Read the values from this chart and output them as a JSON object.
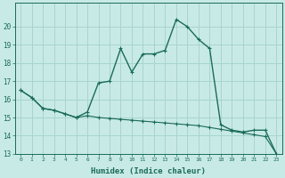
{
  "xlabel": "Humidex (Indice chaleur)",
  "bg_color": "#c8eae6",
  "grid_color": "#a8d4d0",
  "line_color": "#1a6b5a",
  "x_line1": [
    0,
    1,
    2,
    3,
    4,
    5,
    6,
    7,
    8,
    9,
    10,
    11,
    12,
    13,
    14,
    15,
    16,
    17,
    18,
    19,
    20,
    21,
    22,
    23
  ],
  "y_line1": [
    16.5,
    16.1,
    15.5,
    15.4,
    15.2,
    15.0,
    15.3,
    16.9,
    17.0,
    18.8,
    17.5,
    18.5,
    18.5,
    18.7,
    20.4,
    20.0,
    19.3,
    18.8,
    14.6,
    14.3,
    14.2,
    14.3,
    14.3,
    13.0
  ],
  "x_line2": [
    0,
    1,
    2,
    3,
    4,
    5,
    6,
    7,
    8,
    9,
    10,
    11,
    12,
    13,
    14,
    15,
    16,
    17,
    18,
    19,
    20,
    21,
    22,
    23
  ],
  "y_line2": [
    16.5,
    16.1,
    15.5,
    15.4,
    15.2,
    15.0,
    15.1,
    15.0,
    14.95,
    14.9,
    14.85,
    14.8,
    14.75,
    14.7,
    14.65,
    14.6,
    14.55,
    14.45,
    14.35,
    14.25,
    14.15,
    14.05,
    13.95,
    13.0
  ],
  "ylim": [
    13,
    21
  ],
  "xlim": [
    -0.5,
    23.5
  ],
  "yticks": [
    13,
    14,
    15,
    16,
    17,
    18,
    19,
    20
  ],
  "xticks": [
    0,
    1,
    2,
    3,
    4,
    5,
    6,
    7,
    8,
    9,
    10,
    11,
    12,
    13,
    14,
    15,
    16,
    17,
    18,
    19,
    20,
    21,
    22,
    23
  ]
}
